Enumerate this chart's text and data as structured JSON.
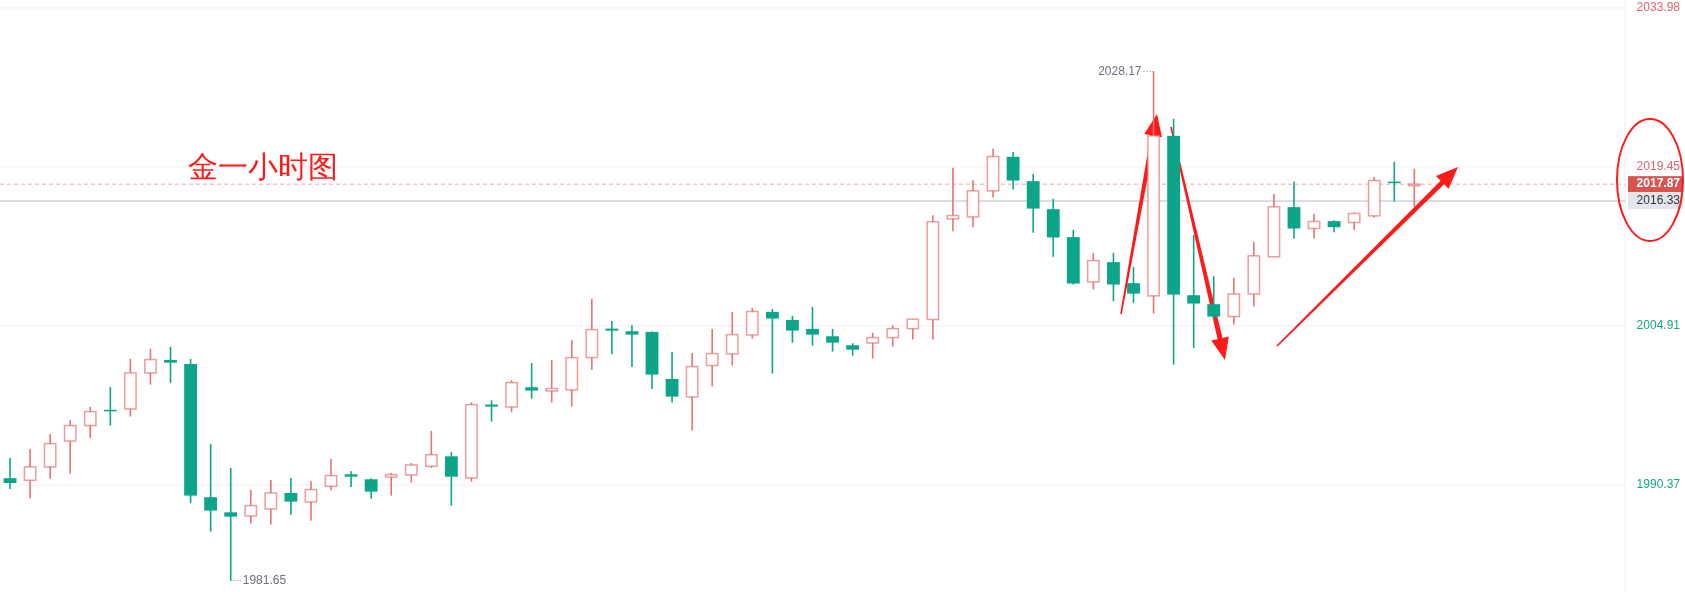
{
  "chart_data": {
    "type": "candlestick",
    "title": "金一小时图",
    "categories": [
      null,
      null,
      null,
      null,
      null,
      null,
      null,
      null,
      null,
      null,
      null,
      null,
      null,
      null,
      null,
      null,
      null,
      null,
      null,
      null,
      null,
      null,
      null,
      null,
      null,
      null,
      null,
      null,
      null,
      null,
      null,
      null,
      null,
      null,
      null,
      null,
      null,
      null,
      null,
      null,
      null,
      null,
      null,
      null,
      null,
      null,
      null,
      null,
      null,
      null,
      null,
      null,
      null,
      null,
      null,
      null,
      null,
      null,
      null,
      null,
      null,
      null,
      null,
      null,
      null,
      null,
      null,
      null,
      null,
      null,
      null,
      null,
      null,
      null,
      null,
      null,
      null,
      null,
      null,
      null,
      null
    ],
    "ohlc": [
      [
        1991.0,
        1992.85,
        1990.02,
        1990.56
      ],
      [
        1990.81,
        1993.67,
        1989.19,
        1992.03
      ],
      [
        1992.03,
        1995.04,
        1990.96,
        1994.16
      ],
      [
        1994.4,
        1996.32,
        1991.42,
        1995.81
      ],
      [
        1995.81,
        1997.51,
        1994.68,
        1997.09
      ],
      [
        1997.25,
        1999.34,
        1995.81,
        1997.2
      ],
      [
        1997.33,
        2001.9,
        1996.63,
        2000.62
      ],
      [
        2000.62,
        2002.81,
        1999.55,
        2001.84
      ],
      [
        2001.81,
        2003.0,
        1999.71,
        2001.56
      ],
      [
        2001.44,
        2001.9,
        1988.74,
        1989.41
      ],
      [
        1989.26,
        1994.13,
        1986.12,
        1988.04
      ],
      [
        1987.88,
        1991.94,
        1981.65,
        1987.49
      ],
      [
        1987.55,
        1989.93,
        1986.85,
        1988.49
      ],
      [
        1988.19,
        1990.84,
        1986.76,
        1989.65
      ],
      [
        1989.65,
        1991.02,
        1987.67,
        1988.86
      ],
      [
        1988.83,
        1990.75,
        1987.12,
        1989.96
      ],
      [
        1990.26,
        1992.76,
        1989.89,
        1991.24
      ],
      [
        1991.36,
        1991.63,
        1990.2,
        1991.14
      ],
      [
        1990.9,
        1991.0,
        1989.13,
        1989.77
      ],
      [
        1991.11,
        1991.48,
        1989.41,
        1991.33
      ],
      [
        1991.3,
        1992.39,
        1990.6,
        1992.21
      ],
      [
        1992.09,
        1995.32,
        1991.94,
        1993.15
      ],
      [
        1993.0,
        1993.4,
        1988.49,
        1991.14
      ],
      [
        1991.02,
        1997.94,
        1990.69,
        1997.73
      ],
      [
        1997.73,
        1998.12,
        1996.17,
        1997.54
      ],
      [
        1997.51,
        1999.95,
        1997.02,
        1999.74
      ],
      [
        1999.31,
        2001.53,
        1998.27,
        1999.01
      ],
      [
        1998.97,
        2001.81,
        1997.91,
        1999.19
      ],
      [
        1999.07,
        2003.64,
        1997.54,
        2002.02
      ],
      [
        2002.02,
        2007.38,
        2000.92,
        2004.58
      ],
      [
        2004.67,
        2005.37,
        2002.36,
        2004.49
      ],
      [
        2004.43,
        2005.01,
        2001.17,
        2004.12
      ],
      [
        2004.37,
        2004.4,
        1999.16,
        2000.47
      ],
      [
        2000.07,
        2002.54,
        1997.91,
        1998.46
      ],
      [
        1998.43,
        2002.45,
        1995.35,
        2001.2
      ],
      [
        2001.29,
        2004.64,
        1999.37,
        2002.39
      ],
      [
        2002.36,
        2006.2,
        2001.29,
        2004.12
      ],
      [
        2004.09,
        2006.56,
        2003.76,
        2006.23
      ],
      [
        2006.2,
        2006.47,
        2000.56,
        2005.59
      ],
      [
        2005.46,
        2005.83,
        2003.39,
        2004.49
      ],
      [
        2004.64,
        2006.65,
        2003.12,
        2004.12
      ],
      [
        2003.97,
        2004.64,
        2002.57,
        2003.39
      ],
      [
        2003.15,
        2003.33,
        2002.2,
        2002.75
      ],
      [
        2003.36,
        2004.28,
        2001.93,
        2003.85
      ],
      [
        2003.85,
        2004.98,
        2003.03,
        2004.67
      ],
      [
        2004.67,
        2005.56,
        2003.67,
        2005.53
      ],
      [
        2005.5,
        2015.03,
        2003.67,
        2014.43
      ],
      [
        2014.7,
        2019.36,
        2013.57,
        2015.0
      ],
      [
        2014.88,
        2018.23,
        2013.94,
        2017.26
      ],
      [
        2017.26,
        2021.1,
        2016.65,
        2020.4
      ],
      [
        2020.37,
        2020.82,
        2017.38,
        2018.2
      ],
      [
        2018.14,
        2018.81,
        2013.42,
        2015.64
      ],
      [
        2015.58,
        2016.53,
        2011.23,
        2013.0
      ],
      [
        2013.03,
        2013.69,
        2008.7,
        2008.79
      ],
      [
        2008.94,
        2011.59,
        2008.24,
        2010.89
      ],
      [
        2010.74,
        2011.59,
        2007.17,
        2008.7
      ],
      [
        2008.82,
        2010.31,
        2007.02,
        2007.87
      ],
      [
        2007.66,
        2028.17,
        2006.05,
        2022.29
      ],
      [
        2022.29,
        2023.84,
        2001.38,
        2007.78
      ],
      [
        2007.72,
        2013.24,
        2002.91,
        2006.96
      ],
      [
        2006.9,
        2009.46,
        2005.6,
        2005.77
      ],
      [
        2005.77,
        2009.31,
        2005.04,
        2007.84
      ],
      [
        2007.84,
        2012.6,
        2006.69,
        2011.32
      ],
      [
        2011.23,
        2016.98,
        2011.2,
        2015.8
      ],
      [
        2015.77,
        2018.08,
        2012.9,
        2013.82
      ],
      [
        2013.82,
        2015.16,
        2012.9,
        2014.46
      ],
      [
        2014.49,
        2014.58,
        2013.48,
        2013.94
      ],
      [
        2014.37,
        2015.28,
        2013.67,
        2015.19
      ],
      [
        2014.97,
        2018.54,
        2014.82,
        2018.2
      ],
      [
        2018.1,
        2019.91,
        2016.29,
        2018.0
      ],
      [
        2017.75,
        2019.27,
        2015.79,
        2017.87
      ],
      null,
      null,
      null,
      null,
      null,
      null,
      null,
      null,
      null,
      null
    ],
    "colors": [
      "#0ca58a",
      "#e57373",
      "#e57373",
      "#e57373",
      "#e57373",
      "#0ca58a",
      "#e57373",
      "#e57373",
      "#0ca58a",
      "#0ca58a",
      "#0ca58a",
      "#0ca58a",
      "#e57373",
      "#e57373",
      "#0ca58a",
      "#e57373",
      "#e57373",
      "#0ca58a",
      "#0ca58a",
      "#e57373",
      "#e57373",
      "#e57373",
      "#0ca58a",
      "#e57373",
      "#0ca58a",
      "#e57373",
      "#0ca58a",
      "#e57373",
      "#e57373",
      "#e57373",
      "#0ca58a",
      "#0ca58a",
      "#0ca58a",
      "#0ca58a",
      "#e57373",
      "#e57373",
      "#e57373",
      "#e57373",
      "#0ca58a",
      "#0ca58a",
      "#0ca58a",
      "#0ca58a",
      "#0ca58a",
      "#e57373",
      "#e57373",
      "#e57373",
      "#e57373",
      "#e57373",
      "#e57373",
      "#e57373",
      "#0ca58a",
      "#0ca58a",
      "#0ca58a",
      "#0ca58a",
      "#e57373",
      "#0ca58a",
      "#0ca58a",
      "#e57373",
      "#0ca58a",
      "#0ca58a",
      "#0ca58a",
      "#e57373",
      "#e57373",
      "#e57373",
      "#0ca58a",
      "#e57373",
      "#0ca58a",
      "#e57373",
      "#e57373",
      "#0ca58a",
      "#e57373",
      null,
      null,
      null,
      null,
      null,
      null,
      null,
      null,
      null,
      null
    ],
    "ylim": [
      1980.6,
      2034.7
    ],
    "yticks": [
      1990.37,
      2004.91,
      2019.45,
      2033.98
    ],
    "grid": "y",
    "ref_lines": [
      {
        "axis": "y",
        "value": 2017.87,
        "label": "2017.87",
        "color": "#d9534f",
        "line_style": "dashed"
      },
      {
        "axis": "y",
        "value": 2016.33,
        "label": "2016.33",
        "color": "#b8bcc8",
        "line_style": "solid"
      }
    ],
    "annotations": [
      "2028.17",
      "1981.65"
    ]
  }
}
